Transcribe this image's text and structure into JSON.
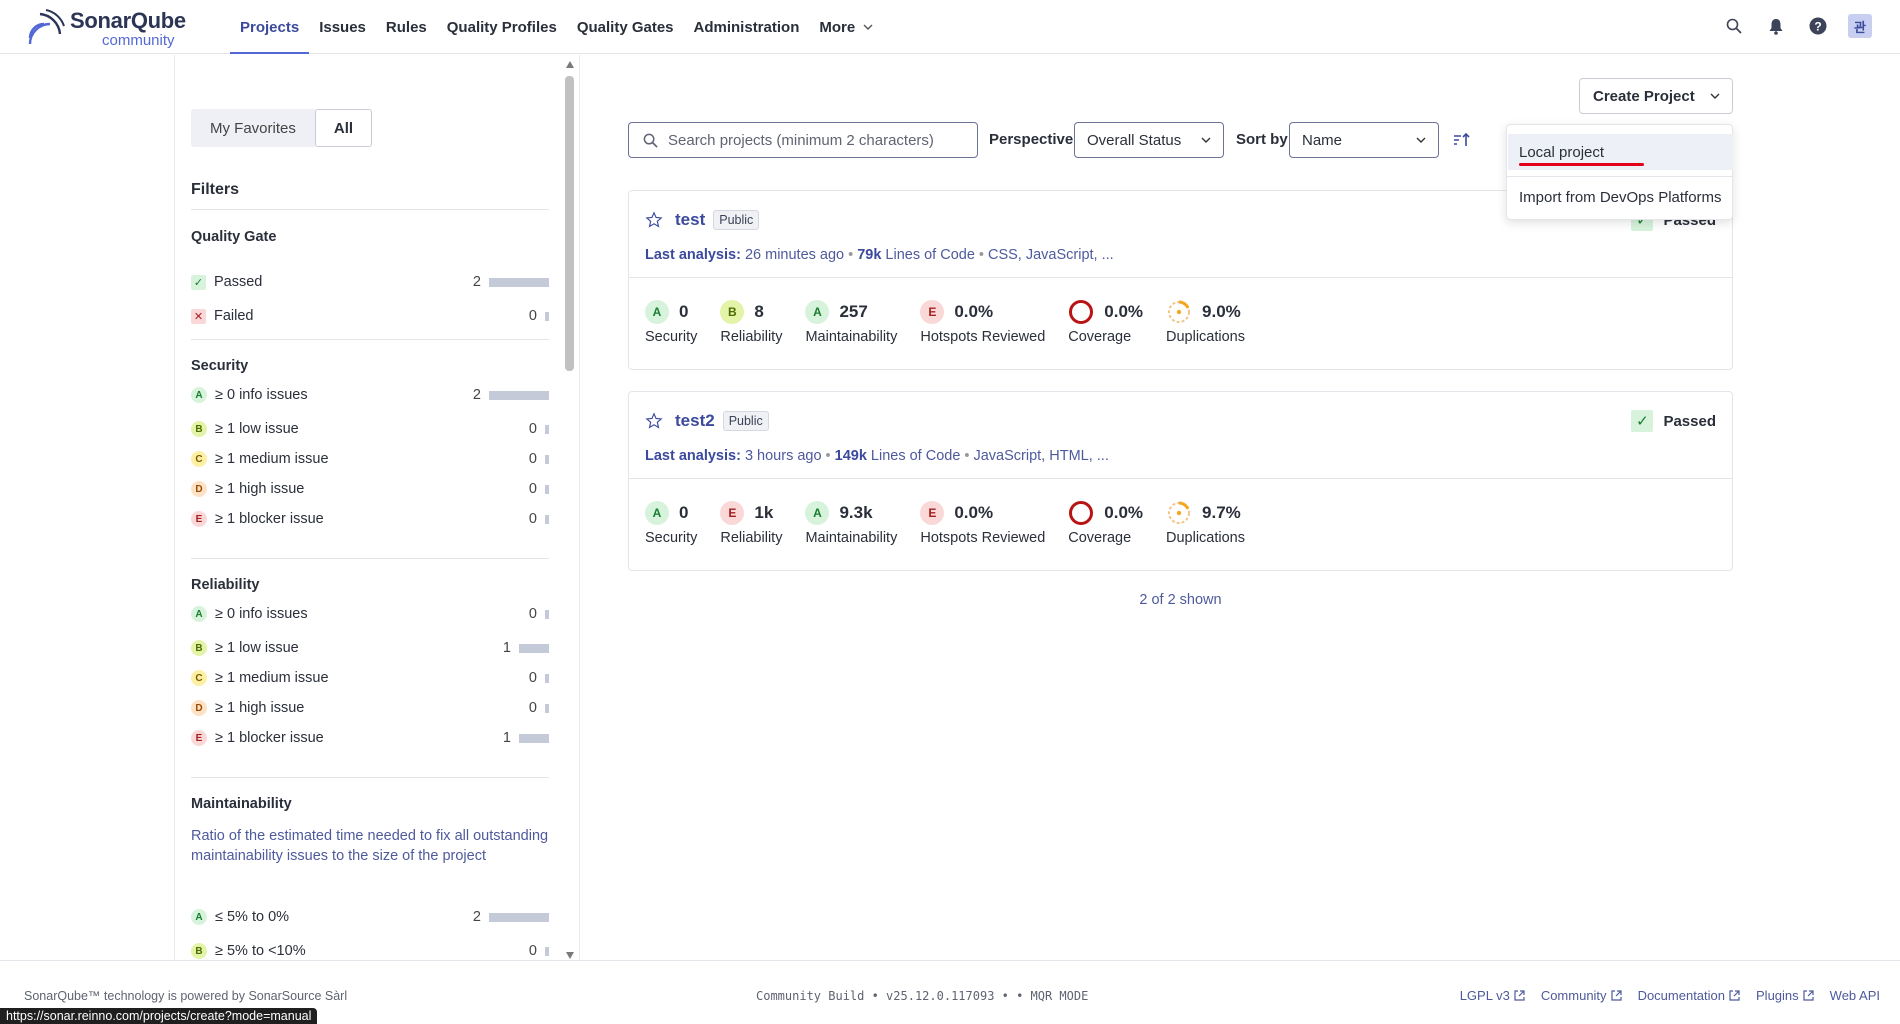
{
  "header": {
    "logo_name": "SonarQube",
    "logo_edition": "community",
    "nav": [
      "Projects",
      "Issues",
      "Rules",
      "Quality Profiles",
      "Quality Gates",
      "Administration",
      "More"
    ],
    "avatar": "관"
  },
  "sidebar": {
    "favorites_label": "My Favorites",
    "all_label": "All",
    "filters_title": "Filters",
    "quality_gate": {
      "title": "Quality Gate",
      "rows": [
        {
          "label": "Passed",
          "count": "2",
          "fraction": 1.0
        },
        {
          "label": "Failed",
          "count": "0",
          "fraction": 0
        }
      ]
    },
    "security": {
      "title": "Security",
      "rows": [
        {
          "grade": "A",
          "label": "≥ 0 info issues",
          "count": "2",
          "fraction": 1.0
        },
        {
          "grade": "B",
          "label": "≥ 1 low issue",
          "count": "0",
          "fraction": 0
        },
        {
          "grade": "C",
          "label": "≥ 1 medium issue",
          "count": "0",
          "fraction": 0
        },
        {
          "grade": "D",
          "label": "≥ 1 high issue",
          "count": "0",
          "fraction": 0
        },
        {
          "grade": "E",
          "label": "≥ 1 blocker issue",
          "count": "0",
          "fraction": 0
        }
      ]
    },
    "reliability": {
      "title": "Reliability",
      "rows": [
        {
          "grade": "A",
          "label": "≥ 0 info issues",
          "count": "0",
          "fraction": 0
        },
        {
          "grade": "B",
          "label": "≥ 1 low issue",
          "count": "1",
          "fraction": 0.5
        },
        {
          "grade": "C",
          "label": "≥ 1 medium issue",
          "count": "0",
          "fraction": 0
        },
        {
          "grade": "D",
          "label": "≥ 1 high issue",
          "count": "0",
          "fraction": 0
        },
        {
          "grade": "E",
          "label": "≥ 1 blocker issue",
          "count": "1",
          "fraction": 0.5
        }
      ]
    },
    "maintainability": {
      "title": "Maintainability",
      "description": "Ratio of the estimated time needed to fix all outstanding maintainability issues to the size of the project",
      "rows": [
        {
          "grade": "A",
          "label": "≤ 5% to 0%",
          "count": "2",
          "fraction": 1.0
        },
        {
          "grade": "B",
          "label": "≥ 5% to <10%",
          "count": "0",
          "fraction": 0
        }
      ]
    }
  },
  "toolbar": {
    "search_placeholder": "Search projects (minimum 2 characters)",
    "perspective_label": "Perspective",
    "perspective_value": "Overall Status",
    "sort_label": "Sort by",
    "sort_value": "Name",
    "create_label": "Create Project"
  },
  "create_menu": {
    "items": [
      "Local project",
      "Import from DevOps Platforms"
    ]
  },
  "projects": [
    {
      "name": "test",
      "visibility": "Public",
      "status": "Passed",
      "analysis_label": "Last analysis:",
      "analysis_time": "26 minutes ago",
      "loc": "79k",
      "loc_label": "Lines of Code",
      "languages": "CSS, JavaScript, ...",
      "security": {
        "grade": "A",
        "value": "0",
        "label": "Security"
      },
      "reliability": {
        "grade": "B",
        "value": "8",
        "label": "Reliability"
      },
      "maintainability": {
        "grade": "A",
        "value": "257",
        "label": "Maintainability"
      },
      "hotspots": {
        "grade": "E",
        "value": "0.0%",
        "label": "Hotspots Reviewed"
      },
      "coverage": {
        "value": "0.0%",
        "label": "Coverage"
      },
      "duplications": {
        "value": "9.0%",
        "label": "Duplications"
      }
    },
    {
      "name": "test2",
      "visibility": "Public",
      "status": "Passed",
      "analysis_label": "Last analysis:",
      "analysis_time": "3 hours ago",
      "loc": "149k",
      "loc_label": "Lines of Code",
      "languages": "JavaScript, HTML, ...",
      "security": {
        "grade": "A",
        "value": "0",
        "label": "Security"
      },
      "reliability": {
        "grade": "E",
        "value": "1k",
        "label": "Reliability"
      },
      "maintainability": {
        "grade": "A",
        "value": "9.3k",
        "label": "Maintainability"
      },
      "hotspots": {
        "grade": "E",
        "value": "0.0%",
        "label": "Hotspots Reviewed"
      },
      "coverage": {
        "value": "0.0%",
        "label": "Coverage"
      },
      "duplications": {
        "value": "9.7%",
        "label": "Duplications"
      }
    }
  ],
  "shown_text": "2 of 2 shown",
  "footer": {
    "left": "SonarQube™ technology is powered by SonarSource Sàrl",
    "mid": "Community Build • v25.12.0.117093 • • MQR MODE",
    "links": [
      "LGPL v3",
      "Community",
      "Documentation",
      "Plugins",
      "Web API"
    ]
  },
  "status_url": "https://sonar.reinno.com/projects/create?mode=manual",
  "colors": {
    "accent": "#5468d5",
    "grade_A_bg": "#d7f3dc",
    "grade_A_fg": "#177d2f",
    "grade_B_bg": "#e3f3a8",
    "grade_B_fg": "#4d6b00",
    "grade_C_bg": "#fdf0a4",
    "grade_C_fg": "#7a5b00",
    "grade_D_bg": "#fde2c6",
    "grade_D_fg": "#9a4a00",
    "grade_E_bg": "#fbd8d8",
    "grade_E_fg": "#a32020"
  }
}
